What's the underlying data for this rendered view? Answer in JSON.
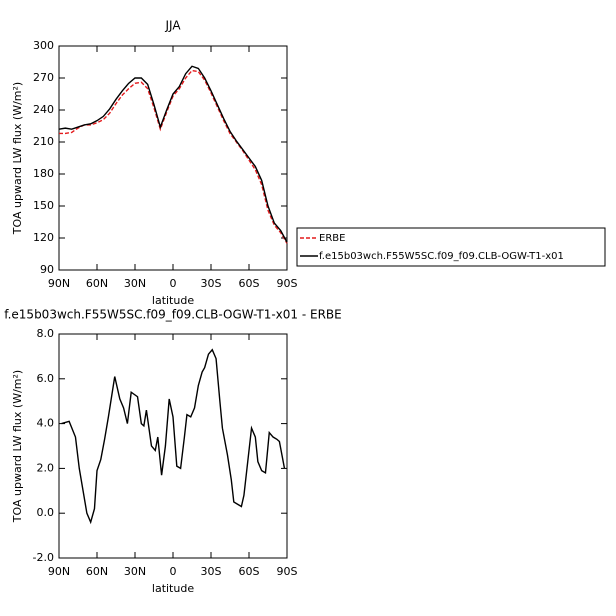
{
  "chart_data": [
    {
      "type": "line",
      "title": "JJA",
      "xlabel": "latitude",
      "ylabel": "TOA upward LW flux (W/m²)",
      "x": [
        90,
        85,
        80,
        75,
        70,
        65,
        60,
        55,
        50,
        45,
        40,
        35,
        30,
        25,
        20,
        15,
        10,
        5,
        0,
        -5,
        -10,
        -15,
        -20,
        -25,
        -30,
        -35,
        -40,
        -45,
        -50,
        -55,
        -60,
        -65,
        -70,
        -75,
        -80,
        -85,
        -90
      ],
      "series": [
        {
          "name": "ERBE",
          "color": "#e41a1c",
          "dash": true,
          "values": [
            218,
            218,
            219,
            223,
            226,
            226,
            228,
            231,
            237,
            246,
            254,
            260,
            265,
            266,
            260,
            242,
            222,
            238,
            253,
            260,
            270,
            277,
            276,
            268,
            256,
            243,
            230,
            218,
            210,
            202,
            193,
            184,
            170,
            146,
            132,
            125,
            115
          ]
        },
        {
          "name": "f.e15b03wch.F55W5SC.f09_f09.CLB-OGW-T1-x01",
          "color": "#000000",
          "dash": false,
          "values": [
            222,
            223,
            222,
            224,
            226,
            227,
            230,
            234,
            241,
            250,
            258,
            265,
            270,
            270,
            264,
            245,
            224,
            240,
            255,
            262,
            274,
            281,
            279,
            270,
            258,
            245,
            232,
            220,
            211,
            203,
            195,
            187,
            174,
            150,
            134,
            127,
            116
          ]
        }
      ],
      "xlim": [
        90,
        -90
      ],
      "xticks": [
        {
          "value": 90,
          "label": "90N"
        },
        {
          "value": 60,
          "label": "60N"
        },
        {
          "value": 30,
          "label": "30N"
        },
        0,
        {
          "value": -30,
          "label": "30S"
        },
        {
          "value": -60,
          "label": "60S"
        },
        {
          "value": -90,
          "label": "90S"
        }
      ],
      "ylim": [
        90,
        300
      ],
      "yticks": [
        90,
        120,
        150,
        180,
        210,
        240,
        270,
        300
      ]
    },
    {
      "type": "line",
      "title": "f.e15b03wch.F55W5SC.f09_f09.CLB-OGW-T1-x01 - ERBE",
      "xlabel": "latitude",
      "ylabel": "TOA upward LW flux (W/m²)",
      "x": [
        88,
        82,
        77,
        74,
        71,
        68,
        65,
        62,
        60,
        57,
        54,
        51,
        46,
        42,
        39,
        36,
        33,
        28,
        25,
        23,
        21,
        17,
        14,
        12,
        9,
        6,
        3,
        0,
        -3,
        -6,
        -9,
        -11,
        -14,
        -17,
        -20,
        -23,
        -25,
        -28,
        -31,
        -34,
        -37,
        -39,
        -43,
        -46,
        -48,
        -51,
        -54,
        -56,
        -59,
        -62,
        -65,
        -67,
        -70,
        -73,
        -76,
        -79,
        -82,
        -84,
        -88
      ],
      "color": "#000000",
      "values": [
        4.0,
        4.1,
        3.4,
        2.0,
        1.0,
        0.0,
        -0.4,
        0.2,
        1.9,
        2.4,
        3.3,
        4.3,
        6.1,
        5.1,
        4.7,
        4.0,
        5.4,
        5.2,
        4.0,
        3.9,
        4.6,
        3.0,
        2.8,
        3.4,
        1.7,
        3.0,
        5.1,
        4.3,
        2.1,
        2.0,
        3.4,
        4.4,
        4.3,
        4.7,
        5.7,
        6.3,
        6.5,
        7.1,
        7.3,
        6.9,
        5.0,
        3.8,
        2.6,
        1.5,
        0.5,
        0.4,
        0.3,
        0.8,
        2.3,
        3.8,
        3.4,
        2.3,
        1.9,
        1.8,
        3.6,
        3.4,
        3.3,
        3.2,
        2.0
      ],
      "xlim": [
        90,
        -90
      ],
      "xticks": [
        {
          "value": 90,
          "label": "90N"
        },
        {
          "value": 60,
          "label": "60N"
        },
        {
          "value": 30,
          "label": "30N"
        },
        0,
        {
          "value": -30,
          "label": "30S"
        },
        {
          "value": -60,
          "label": "60S"
        },
        {
          "value": -90,
          "label": "90S"
        }
      ],
      "ylim": [
        -2,
        8
      ],
      "yticks": [
        {
          "value": -2,
          "label": "-2.0"
        },
        {
          "value": 0,
          "label": "0.0"
        },
        {
          "value": 2,
          "label": "2.0"
        },
        {
          "value": 4,
          "label": "4.0"
        },
        {
          "value": 6,
          "label": "6.0"
        },
        {
          "value": 8,
          "label": "8.0"
        }
      ]
    }
  ]
}
